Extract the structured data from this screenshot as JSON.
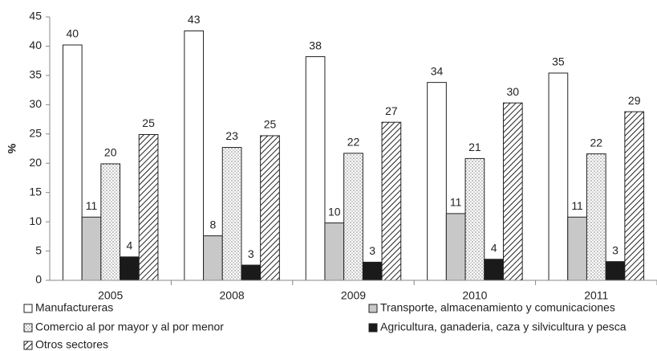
{
  "chart_data": {
    "type": "bar",
    "y_label": "%",
    "categories": [
      "2005",
      "2008",
      "2009",
      "2010",
      "2011"
    ],
    "series": [
      {
        "name": "Manufactureras",
        "color": "#ffffff",
        "pattern": "none",
        "values": [
          40.2,
          42.6,
          38.2,
          33.8,
          35.4
        ],
        "value_labels": [
          "40",
          "43",
          "38",
          "34",
          "35"
        ]
      },
      {
        "name": "Transporte, almacenamiento y comunicaciones",
        "color": "#c8c8c8",
        "pattern": "none",
        "values": [
          10.8,
          7.6,
          9.8,
          11.4,
          10.8
        ],
        "value_labels": [
          "11",
          "8",
          "10",
          "11",
          "11"
        ]
      },
      {
        "name": "Comercio al por mayor y al por menor",
        "color": "#ffffff",
        "pattern": "dots",
        "values": [
          19.9,
          22.7,
          21.7,
          20.8,
          21.6
        ],
        "value_labels": [
          "20",
          "23",
          "22",
          "21",
          "22"
        ]
      },
      {
        "name": "Agricultura, ganaderia, caza y silvicultura y pesca",
        "color": "#1a1a1a",
        "pattern": "none",
        "values": [
          4.0,
          2.6,
          3.1,
          3.6,
          3.2
        ],
        "value_labels": [
          "4",
          "3",
          "3",
          "4",
          "3"
        ]
      },
      {
        "name": "Otros sectores",
        "color": "#ffffff",
        "pattern": "hatch",
        "values": [
          24.9,
          24.7,
          27.0,
          30.3,
          28.8
        ],
        "value_labels": [
          "25",
          "25",
          "27",
          "30",
          "29"
        ]
      }
    ],
    "ylim": [
      0,
      45
    ],
    "yticks": [
      0,
      5,
      10,
      15,
      20,
      25,
      30,
      35,
      40,
      45
    ],
    "grid": false
  }
}
